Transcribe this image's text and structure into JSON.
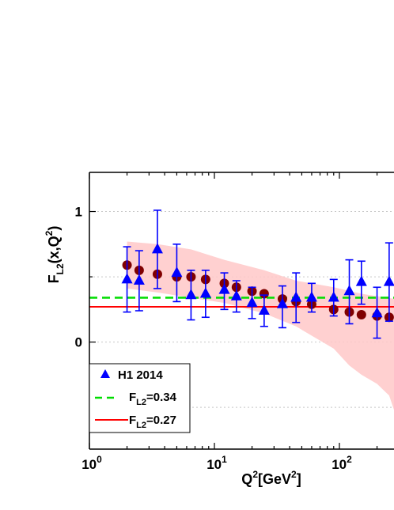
{
  "chart_data": {
    "type": "scatter",
    "title": "",
    "xlabel": {
      "base": "Q",
      "sup1": "2",
      "mid": "[GeV",
      "sup2": "2",
      "end": "]"
    },
    "ylabel": {
      "base": "F",
      "sub": "L2",
      "mid": "(x,Q",
      "sup": "2",
      "end": ")"
    },
    "x_scale": "log",
    "xlim": [
      1,
      280
    ],
    "ylim": [
      -0.82,
      1.3
    ],
    "grid": "dotted horizontal at 0.5 steps",
    "x_ticks": [
      {
        "base": "10",
        "exp": "0",
        "value": 1
      },
      {
        "base": "10",
        "exp": "1",
        "value": 10
      },
      {
        "base": "10",
        "exp": "2",
        "value": 100
      }
    ],
    "y_ticks": [
      {
        "label": "1",
        "value": 1
      },
      {
        "label": "0",
        "value": 0
      }
    ],
    "legend": {
      "placement": "bottom-left",
      "entries": [
        {
          "text": "H1 2014",
          "base": "",
          "sub": "",
          "rest": ""
        },
        {
          "text": "",
          "base": "F",
          "sub": "L2",
          "rest": "=0.34"
        },
        {
          "text": "",
          "base": "F",
          "sub": "L2",
          "rest": "=0.27"
        }
      ]
    },
    "colors": {
      "h1": "#0000ff",
      "model": "#800000",
      "band": "#ffc8c8",
      "green_line": "#00dd00",
      "red_line": "#ff0000"
    },
    "reference_lines": [
      {
        "y": 0.34,
        "style": "dashed",
        "color": "#00dd00"
      },
      {
        "y": 0.27,
        "style": "solid",
        "color": "#ff0000"
      }
    ],
    "series": [
      {
        "name": "H1 2014",
        "marker": "triangle",
        "points": [
          {
            "x": 2.0,
            "y": 0.48,
            "lo": 0.23,
            "hi": 0.73
          },
          {
            "x": 2.5,
            "y": 0.47,
            "lo": 0.24,
            "hi": 0.7
          },
          {
            "x": 3.5,
            "y": 0.71,
            "lo": 0.41,
            "hi": 1.01
          },
          {
            "x": 5.0,
            "y": 0.53,
            "lo": 0.31,
            "hi": 0.75
          },
          {
            "x": 6.5,
            "y": 0.36,
            "lo": 0.17,
            "hi": 0.55
          },
          {
            "x": 8.5,
            "y": 0.37,
            "lo": 0.19,
            "hi": 0.55
          },
          {
            "x": 12,
            "y": 0.4,
            "lo": 0.25,
            "hi": 0.53
          },
          {
            "x": 15,
            "y": 0.35,
            "lo": 0.23,
            "hi": 0.47
          },
          {
            "x": 20,
            "y": 0.3,
            "lo": 0.18,
            "hi": 0.42
          },
          {
            "x": 25,
            "y": 0.24,
            "lo": 0.12,
            "hi": 0.36
          },
          {
            "x": 35,
            "y": 0.29,
            "lo": 0.11,
            "hi": 0.43
          },
          {
            "x": 45,
            "y": 0.34,
            "lo": 0.15,
            "hi": 0.53
          },
          {
            "x": 60,
            "y": 0.34,
            "lo": 0.23,
            "hi": 0.45
          },
          {
            "x": 90,
            "y": 0.34,
            "lo": 0.2,
            "hi": 0.48
          },
          {
            "x": 120,
            "y": 0.39,
            "lo": 0.14,
            "hi": 0.63
          },
          {
            "x": 150,
            "y": 0.46,
            "lo": 0.29,
            "hi": 0.62
          },
          {
            "x": 200,
            "y": 0.22,
            "lo": 0.03,
            "hi": 0.42
          },
          {
            "x": 250,
            "y": 0.46,
            "lo": 0.16,
            "hi": 0.76
          }
        ]
      },
      {
        "name": "",
        "marker": "circle",
        "points": [
          {
            "x": 2.0,
            "y": 0.59
          },
          {
            "x": 2.5,
            "y": 0.55
          },
          {
            "x": 3.5,
            "y": 0.52
          },
          {
            "x": 5.0,
            "y": 0.5
          },
          {
            "x": 6.5,
            "y": 0.5
          },
          {
            "x": 8.5,
            "y": 0.48
          },
          {
            "x": 12,
            "y": 0.45
          },
          {
            "x": 15,
            "y": 0.42
          },
          {
            "x": 20,
            "y": 0.39
          },
          {
            "x": 25,
            "y": 0.37
          },
          {
            "x": 35,
            "y": 0.33
          },
          {
            "x": 45,
            "y": 0.31
          },
          {
            "x": 60,
            "y": 0.29
          },
          {
            "x": 90,
            "y": 0.25
          },
          {
            "x": 120,
            "y": 0.23
          },
          {
            "x": 150,
            "y": 0.21
          },
          {
            "x": 200,
            "y": 0.2
          },
          {
            "x": 250,
            "y": 0.19
          }
        ]
      }
    ],
    "band": {
      "upper": [
        {
          "x": 2.0,
          "y": 0.77
        },
        {
          "x": 3.5,
          "y": 0.75
        },
        {
          "x": 6.5,
          "y": 0.71
        },
        {
          "x": 12,
          "y": 0.63
        },
        {
          "x": 25,
          "y": 0.55
        },
        {
          "x": 45,
          "y": 0.47
        },
        {
          "x": 90,
          "y": 0.42
        },
        {
          "x": 150,
          "y": 0.37
        },
        {
          "x": 280,
          "y": 0.33
        }
      ],
      "lower": [
        {
          "x": 2.0,
          "y": 0.41
        },
        {
          "x": 3.5,
          "y": 0.38
        },
        {
          "x": 6.5,
          "y": 0.34
        },
        {
          "x": 12,
          "y": 0.3
        },
        {
          "x": 25,
          "y": 0.22
        },
        {
          "x": 45,
          "y": 0.12
        },
        {
          "x": 90,
          "y": -0.05
        },
        {
          "x": 120,
          "y": -0.18
        },
        {
          "x": 150,
          "y": -0.25
        },
        {
          "x": 200,
          "y": -0.32
        },
        {
          "x": 250,
          "y": -0.41
        },
        {
          "x": 280,
          "y": -0.55
        }
      ]
    }
  }
}
